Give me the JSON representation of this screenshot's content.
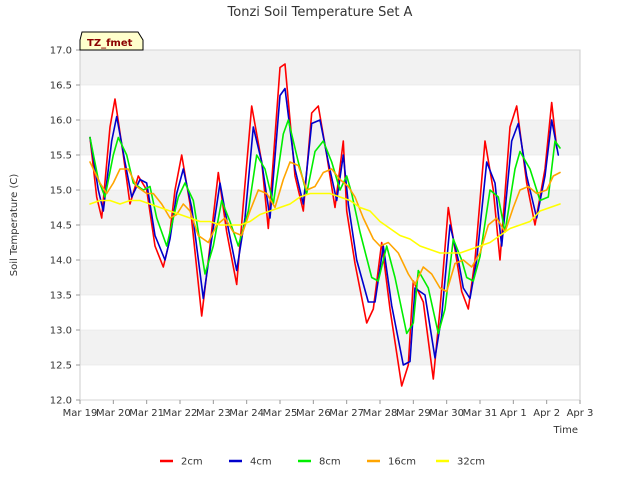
{
  "chart_data": {
    "type": "line",
    "title": "Tonzi Soil Temperature Set A",
    "xlabel": "Time",
    "ylabel": "Soil Temperature (C)",
    "annotation": "TZ_fmet",
    "xlim": [
      0,
      15
    ],
    "ylim": [
      12.0,
      17.0
    ],
    "x_ticks": [
      {
        "value": 0,
        "label": "Mar 19"
      },
      {
        "value": 1,
        "label": "Mar 20"
      },
      {
        "value": 2,
        "label": "Mar 21"
      },
      {
        "value": 3,
        "label": "Mar 22"
      },
      {
        "value": 4,
        "label": "Mar 23"
      },
      {
        "value": 5,
        "label": "Mar 24"
      },
      {
        "value": 6,
        "label": "Mar 25"
      },
      {
        "value": 7,
        "label": "Mar 26"
      },
      {
        "value": 8,
        "label": "Mar 27"
      },
      {
        "value": 9,
        "label": "Mar 28"
      },
      {
        "value": 10,
        "label": "Mar 29"
      },
      {
        "value": 11,
        "label": "Mar 30"
      },
      {
        "value": 12,
        "label": "Mar 31"
      },
      {
        "value": 13,
        "label": "Apr 1"
      },
      {
        "value": 14,
        "label": "Apr 2"
      },
      {
        "value": 15,
        "label": "Apr 3"
      }
    ],
    "y_ticks": [
      {
        "value": 12.0,
        "label": "12.0"
      },
      {
        "value": 12.5,
        "label": "12.5"
      },
      {
        "value": 13.0,
        "label": "13.0"
      },
      {
        "value": 13.5,
        "label": "13.5"
      },
      {
        "value": 14.0,
        "label": "14.0"
      },
      {
        "value": 14.5,
        "label": "14.5"
      },
      {
        "value": 15.0,
        "label": "15.0"
      },
      {
        "value": 15.5,
        "label": "15.5"
      },
      {
        "value": 16.0,
        "label": "16.0"
      },
      {
        "value": 16.5,
        "label": "16.5"
      },
      {
        "value": 17.0,
        "label": "17.0"
      }
    ],
    "grid": true,
    "legend_position": "bottom",
    "series": [
      {
        "name": "2cm",
        "color": "#ff0000",
        "x": [
          0.3,
          0.5,
          0.65,
          0.9,
          1.05,
          1.3,
          1.5,
          1.75,
          2.0,
          2.25,
          2.5,
          2.65,
          2.85,
          3.05,
          3.3,
          3.65,
          3.9,
          4.15,
          4.4,
          4.7,
          4.9,
          5.15,
          5.45,
          5.65,
          6.0,
          6.15,
          6.45,
          6.7,
          6.95,
          7.15,
          7.4,
          7.65,
          7.9,
          8.0,
          8.25,
          8.6,
          8.8,
          9.05,
          9.3,
          9.65,
          9.85,
          10.0,
          10.3,
          10.6,
          10.8,
          11.05,
          11.3,
          11.45,
          11.65,
          11.85,
          12.15,
          12.4,
          12.6,
          12.9,
          13.1,
          13.4,
          13.65,
          13.95,
          14.15,
          14.3
        ],
        "y": [
          15.75,
          14.9,
          14.6,
          15.9,
          16.3,
          15.5,
          14.8,
          15.2,
          15.0,
          14.2,
          13.9,
          14.2,
          15.0,
          15.5,
          14.8,
          13.2,
          14.2,
          15.25,
          14.4,
          13.65,
          14.8,
          16.2,
          15.4,
          14.45,
          16.75,
          16.8,
          15.2,
          14.7,
          16.1,
          16.2,
          15.5,
          14.75,
          15.7,
          14.7,
          13.95,
          13.1,
          13.3,
          14.25,
          13.3,
          12.2,
          12.5,
          13.7,
          13.4,
          12.3,
          13.3,
          14.75,
          14.0,
          13.55,
          13.3,
          14.0,
          15.7,
          15.0,
          14.0,
          15.9,
          16.2,
          15.1,
          14.5,
          15.3,
          16.25,
          15.6
        ]
      },
      {
        "name": "4cm",
        "color": "#0000cc",
        "x": [
          0.3,
          0.55,
          0.7,
          0.95,
          1.1,
          1.35,
          1.55,
          1.8,
          2.0,
          2.25,
          2.55,
          2.7,
          2.9,
          3.1,
          3.35,
          3.7,
          3.95,
          4.2,
          4.45,
          4.7,
          4.95,
          5.2,
          5.45,
          5.7,
          6.0,
          6.15,
          6.45,
          6.7,
          6.95,
          7.2,
          7.45,
          7.7,
          7.9,
          8.05,
          8.3,
          8.65,
          8.85,
          9.1,
          9.35,
          9.7,
          9.9,
          10.05,
          10.35,
          10.65,
          10.85,
          11.1,
          11.35,
          11.5,
          11.7,
          11.9,
          12.2,
          12.45,
          12.65,
          12.95,
          13.15,
          13.4,
          13.7,
          13.95,
          14.15,
          14.35
        ],
        "y": [
          15.75,
          15.0,
          14.7,
          15.7,
          16.05,
          15.4,
          14.9,
          15.15,
          15.1,
          14.35,
          14.0,
          14.3,
          14.95,
          15.3,
          14.75,
          13.45,
          14.3,
          15.1,
          14.45,
          13.85,
          14.6,
          15.9,
          15.4,
          14.6,
          16.35,
          16.45,
          15.3,
          14.8,
          15.95,
          16.0,
          15.4,
          14.85,
          15.5,
          14.8,
          14.0,
          13.4,
          13.4,
          14.2,
          13.35,
          12.5,
          12.55,
          13.6,
          13.5,
          12.6,
          13.2,
          14.5,
          14.0,
          13.6,
          13.45,
          14.0,
          15.4,
          15.1,
          14.2,
          15.7,
          15.95,
          15.2,
          14.6,
          15.2,
          16.0,
          15.5
        ]
      },
      {
        "name": "8cm",
        "color": "#00ee00",
        "x": [
          0.3,
          0.55,
          0.75,
          1.0,
          1.15,
          1.4,
          1.6,
          1.9,
          2.1,
          2.3,
          2.6,
          2.75,
          2.95,
          3.15,
          3.4,
          3.75,
          4.0,
          4.25,
          4.5,
          4.75,
          5.05,
          5.3,
          5.55,
          5.8,
          6.1,
          6.25,
          6.55,
          6.8,
          7.05,
          7.3,
          7.55,
          7.8,
          8.0,
          8.15,
          8.4,
          8.75,
          8.95,
          9.2,
          9.45,
          9.8,
          10.0,
          10.15,
          10.45,
          10.75,
          10.95,
          11.2,
          11.45,
          11.6,
          11.8,
          12.0,
          12.3,
          12.55,
          12.75,
          13.05,
          13.2,
          13.5,
          13.8,
          14.05,
          14.25,
          14.4
        ],
        "y": [
          15.75,
          15.15,
          14.9,
          15.5,
          15.75,
          15.5,
          15.1,
          15.0,
          15.05,
          14.6,
          14.2,
          14.5,
          14.9,
          15.1,
          14.85,
          13.8,
          14.2,
          14.85,
          14.55,
          14.2,
          14.7,
          15.5,
          15.3,
          14.8,
          15.8,
          16.0,
          15.4,
          14.95,
          15.55,
          15.7,
          15.4,
          15.0,
          15.2,
          14.95,
          14.4,
          13.75,
          13.7,
          14.2,
          13.75,
          12.95,
          13.1,
          13.85,
          13.6,
          12.95,
          13.3,
          14.3,
          14.0,
          13.75,
          13.7,
          14.05,
          15.0,
          14.9,
          14.4,
          15.3,
          15.55,
          15.3,
          14.85,
          14.9,
          15.7,
          15.6
        ]
      },
      {
        "name": "16cm",
        "color": "#ffa500",
        "x": [
          0.3,
          0.6,
          0.8,
          1.0,
          1.2,
          1.45,
          1.7,
          2.0,
          2.2,
          2.45,
          2.7,
          2.9,
          3.1,
          3.3,
          3.55,
          3.85,
          4.1,
          4.35,
          4.6,
          4.85,
          5.1,
          5.35,
          5.6,
          5.85,
          6.1,
          6.3,
          6.55,
          6.8,
          7.05,
          7.3,
          7.55,
          7.8,
          8.05,
          8.25,
          8.5,
          8.8,
          9.0,
          9.25,
          9.55,
          9.85,
          10.05,
          10.3,
          10.55,
          10.8,
          11.0,
          11.25,
          11.5,
          11.75,
          12.0,
          12.25,
          12.5,
          12.75,
          13.0,
          13.2,
          13.45,
          13.7,
          14.0,
          14.2,
          14.4
        ],
        "y": [
          15.4,
          15.1,
          14.95,
          15.1,
          15.3,
          15.3,
          15.05,
          14.95,
          14.95,
          14.8,
          14.6,
          14.65,
          14.8,
          14.7,
          14.35,
          14.25,
          14.5,
          14.6,
          14.4,
          14.35,
          14.7,
          15.0,
          14.95,
          14.75,
          15.15,
          15.4,
          15.35,
          15.0,
          15.05,
          15.25,
          15.3,
          15.15,
          15.05,
          14.9,
          14.6,
          14.3,
          14.2,
          14.25,
          14.1,
          13.8,
          13.65,
          13.9,
          13.8,
          13.6,
          13.55,
          13.95,
          14.0,
          13.9,
          14.1,
          14.5,
          14.6,
          14.4,
          14.75,
          15.0,
          15.05,
          14.95,
          15.0,
          15.2,
          15.25
        ]
      },
      {
        "name": "32cm",
        "color": "#ffff00",
        "x": [
          0.3,
          0.6,
          0.9,
          1.2,
          1.5,
          1.8,
          2.1,
          2.4,
          2.7,
          3.0,
          3.3,
          3.6,
          3.9,
          4.2,
          4.5,
          4.8,
          5.1,
          5.4,
          5.7,
          6.0,
          6.3,
          6.6,
          6.9,
          7.2,
          7.5,
          7.8,
          8.1,
          8.4,
          8.7,
          9.0,
          9.3,
          9.6,
          9.9,
          10.2,
          10.5,
          10.8,
          11.1,
          11.4,
          11.7,
          12.0,
          12.3,
          12.6,
          12.9,
          13.2,
          13.5,
          13.8,
          14.1,
          14.4
        ],
        "y": [
          14.8,
          14.85,
          14.85,
          14.8,
          14.85,
          14.85,
          14.8,
          14.75,
          14.7,
          14.65,
          14.6,
          14.55,
          14.55,
          14.5,
          14.5,
          14.5,
          14.55,
          14.65,
          14.7,
          14.75,
          14.8,
          14.9,
          14.95,
          14.95,
          14.95,
          14.9,
          14.85,
          14.75,
          14.7,
          14.55,
          14.45,
          14.35,
          14.3,
          14.2,
          14.15,
          14.1,
          14.1,
          14.1,
          14.15,
          14.2,
          14.25,
          14.35,
          14.45,
          14.5,
          14.55,
          14.7,
          14.75,
          14.8
        ]
      }
    ]
  }
}
